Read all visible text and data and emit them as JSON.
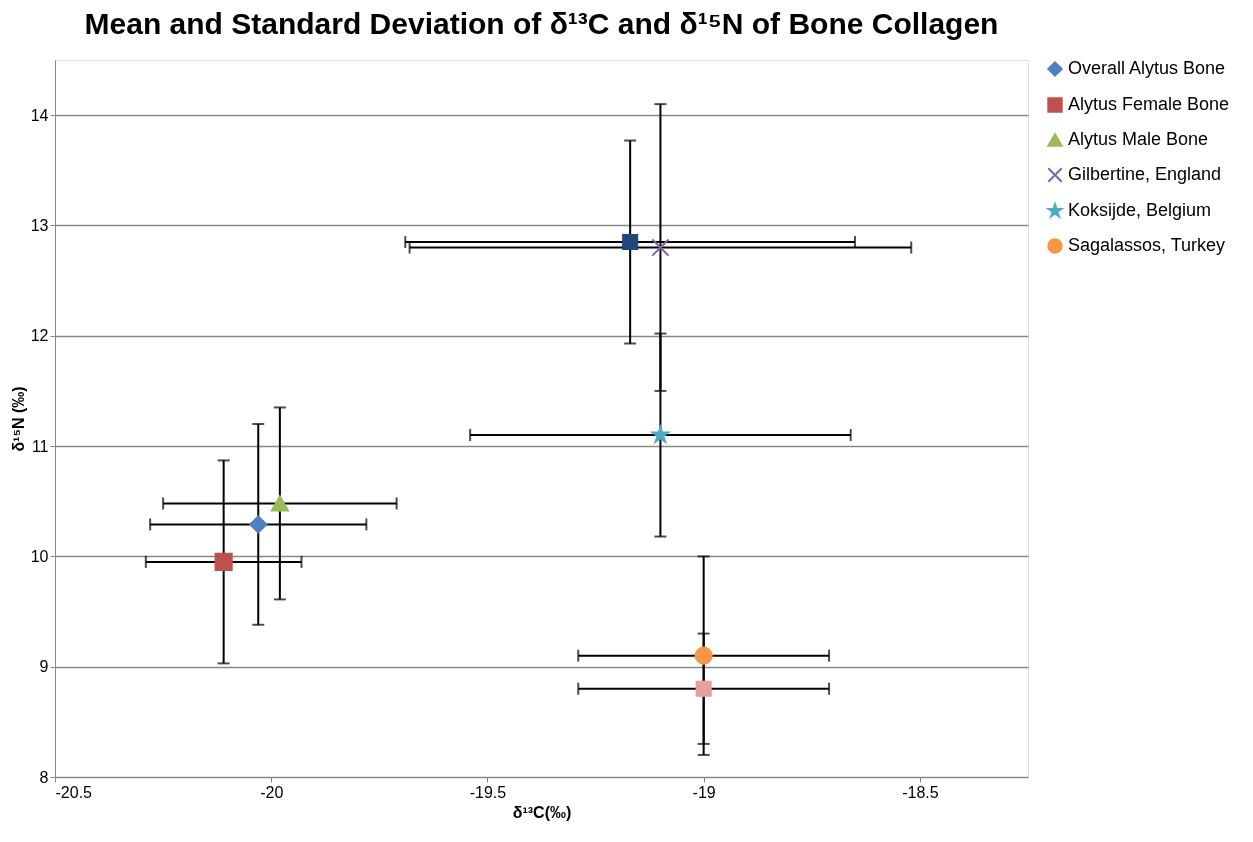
{
  "chart_data": {
    "type": "scatter",
    "title": "Mean and Standard Deviation of δ¹³C and δ¹⁵N of Bone Collagen",
    "xlabel": "δ¹³C(‰)",
    "ylabel": "δ¹⁵N (‰)",
    "xlim": [
      -20.5,
      -18.25
    ],
    "xticks": [
      -20.5,
      -20,
      -19.5,
      -19,
      -18.5
    ],
    "ylim": [
      8,
      14.5
    ],
    "yticks": [
      8,
      9,
      10,
      11,
      12,
      13,
      14
    ],
    "grid": "y",
    "legend": "right",
    "series": [
      {
        "name": "Overall Alytus Bone",
        "color": "#4f81bd",
        "marker": "diamond",
        "x": [
          -20.03
        ],
        "values": [
          10.29
        ],
        "errors": [
          0.91
        ],
        "xerrors": [
          0.25
        ]
      },
      {
        "name": "Alytus Female Bone",
        "color": "#c0504d",
        "marker": "square",
        "x": [
          -20.11
        ],
        "values": [
          9.95
        ],
        "errors": [
          0.92
        ],
        "xerrors": [
          0.18
        ]
      },
      {
        "name": "Alytus Male Bone",
        "color": "#9bbb59",
        "marker": "triangle",
        "x": [
          -19.98
        ],
        "values": [
          10.48
        ],
        "errors": [
          0.87
        ],
        "xerrors": [
          0.27
        ]
      },
      {
        "name": "Gilbertine, England",
        "color": "#8064a2",
        "marker": "cross",
        "x": [
          -19.1
        ],
        "values": [
          12.8
        ],
        "errors": [
          1.3
        ],
        "xerrors": [
          0.58
        ]
      },
      {
        "name": "Koksijde, Belgium",
        "color": "#4bacc6",
        "marker": "star",
        "x": [
          -19.1
        ],
        "values": [
          11.1
        ],
        "errors": [
          0.92
        ],
        "xerrors": [
          0.44
        ]
      },
      {
        "name": "Sagalassos, Turkey",
        "color": "#f79646",
        "marker": "circle",
        "x": [
          -19.0
        ],
        "values": [
          9.1
        ],
        "errors": [
          0.9
        ],
        "xerrors": [
          0.29
        ]
      },
      {
        "color": "#1f497d",
        "marker": "square",
        "x": [
          -19.17
        ],
        "values": [
          12.85
        ],
        "errors": [
          0.92
        ],
        "xerrors": [
          0.52
        ]
      },
      {
        "color": "#e6a0a0",
        "marker": "square",
        "x": [
          -19.0
        ],
        "values": [
          8.8
        ],
        "errors": [
          0.5
        ],
        "xerrors": [
          0.29
        ]
      }
    ]
  }
}
